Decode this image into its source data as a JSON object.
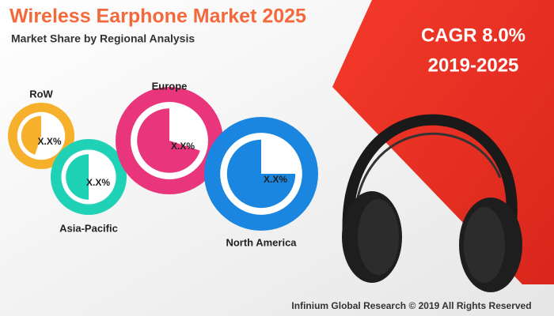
{
  "header": {
    "title": "Wireless Earphone Market 2025",
    "subtitle": "Market Share by Regional Analysis"
  },
  "cagr": {
    "rate": "CAGR 8.0%",
    "period": "2019-2025"
  },
  "regions": [
    {
      "name": "RoW",
      "label": "X.X%"
    },
    {
      "name": "Asia-Pacific",
      "label": "X.X%"
    },
    {
      "name": "Europe",
      "label": "X.X%"
    },
    {
      "name": "North America",
      "label": "X.X%"
    }
  ],
  "footer": "Infinium Global Research © 2019 All Rights Reserved"
}
